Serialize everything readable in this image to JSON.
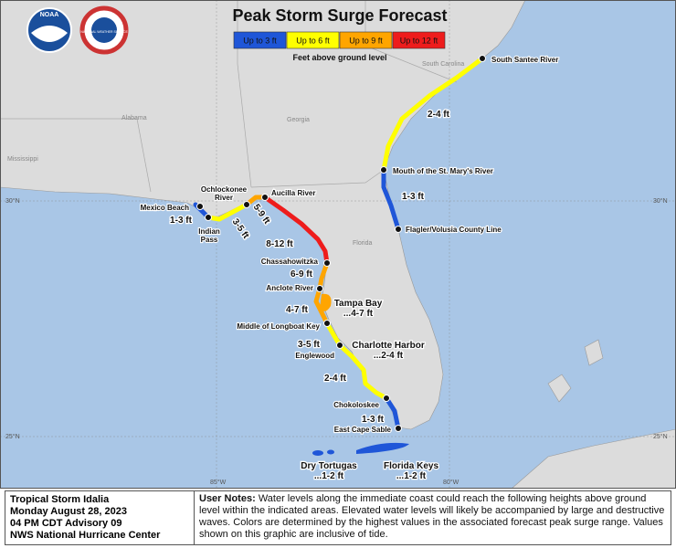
{
  "header": {
    "title": "Peak Storm Surge Forecast",
    "agencies": [
      "NOAA",
      "NATIONAL WEATHER SERVICE"
    ]
  },
  "legend": {
    "items": [
      {
        "label": "Up to 3 ft",
        "color": "#1f56d8"
      },
      {
        "label": "Up to 6 ft",
        "color": "#ffff00"
      },
      {
        "label": "Up to 9 ft",
        "color": "#ffa500"
      },
      {
        "label": "Up to 12 ft",
        "color": "#ee1c1c"
      }
    ],
    "caption": "Feet above ground level"
  },
  "map": {
    "regions": [
      "Alabama",
      "Georgia",
      "South Carolina",
      "Mississippi",
      "Florida"
    ],
    "graticule": [
      "30°N",
      "30°N",
      "25°N",
      "25°N",
      "85°W",
      "80°W"
    ],
    "locations": [
      "South Santee River",
      "Mouth of the St. Mary's River",
      "Flagler/Volusia County Line",
      "Mexico Beach",
      "Indian Pass",
      "Ochlockonee River",
      "Aucilla River",
      "Chassahowitzka",
      "Anclote River",
      "Middle of Longboat Key",
      "Englewood",
      "Chokoloskee",
      "East Cape Sable"
    ],
    "surge_labels": [
      "2-4 ft",
      "1-3 ft",
      "1-3 ft",
      "3-5 ft",
      "5-9 ft",
      "8-12 ft",
      "6-9 ft",
      "4-7 ft",
      "Tampa Bay...4-7 ft",
      "3-5 ft",
      "Charlotte Harbor...2-4 ft",
      "2-4 ft",
      "1-3 ft",
      "Dry Tortugas...1-2 ft",
      "Florida Keys...1-2 ft"
    ]
  },
  "info": {
    "lines": [
      "Tropical Storm Idalia",
      "Monday August 28, 2023",
      "04 PM CDT Advisory 09",
      "NWS National Hurricane Center"
    ]
  },
  "notes": {
    "heading": "User Notes:",
    "text": "Water levels along the immediate coast could reach the following heights above ground level within the indicated areas. Elevated water levels will likely be accompanied by large and destructive waves. Colors are determined by the highest values in the associated forecast peak surge range. Values shown on this graphic are inclusive of tide."
  }
}
